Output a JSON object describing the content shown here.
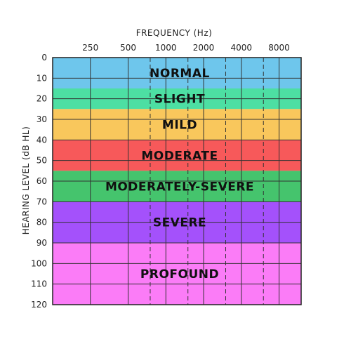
{
  "chart_data": {
    "type": "heatmap",
    "title": "",
    "xlabel": "FREQUENCY (Hz)",
    "ylabel": "HEARING LEVEL (dB HL)",
    "x_scale": "log",
    "x_ticks": [
      250,
      500,
      1000,
      2000,
      4000,
      8000
    ],
    "x_tick_labels": [
      "250",
      "500",
      "1000",
      "2000",
      "4000",
      "8000"
    ],
    "x_dashed_lines": [
      750,
      1500,
      3000,
      6000
    ],
    "xlim": [
      125,
      12000
    ],
    "ylim": [
      0,
      120
    ],
    "y_inverted": true,
    "y_ticks": [
      0,
      10,
      20,
      30,
      40,
      50,
      60,
      70,
      80,
      90,
      100,
      110,
      120
    ],
    "grid": true,
    "bands": [
      {
        "label": "NORMAL",
        "from": 0,
        "to": 15,
        "color": "#6ec6ec"
      },
      {
        "label": "SLIGHT",
        "from": 15,
        "to": 25,
        "color": "#4ddfa3"
      },
      {
        "label": "MILD",
        "from": 25,
        "to": 40,
        "color": "#f9c75c"
      },
      {
        "label": "MODERATE",
        "from": 40,
        "to": 55,
        "color": "#f7595a"
      },
      {
        "label": "MODERATELY-SEVERE",
        "from": 55,
        "to": 70,
        "color": "#45c46d"
      },
      {
        "label": "SEVERE",
        "from": 70,
        "to": 90,
        "color": "#a451fb"
      },
      {
        "label": "PROFOUND",
        "from": 90,
        "to": 120,
        "color": "#fb7cf7"
      }
    ]
  }
}
